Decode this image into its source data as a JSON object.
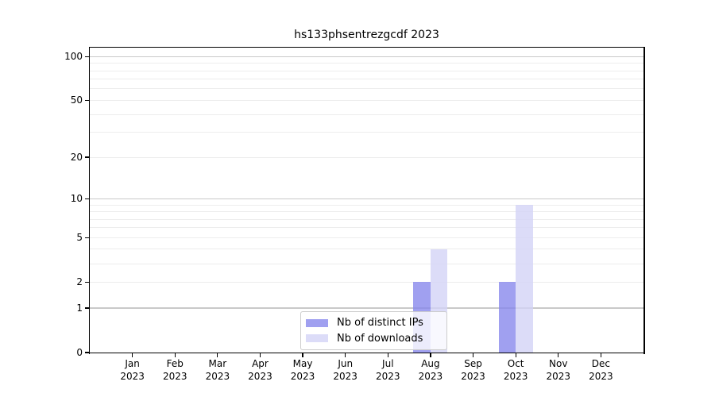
{
  "chart_data": {
    "type": "bar",
    "title": "hs133phsentrezgcdf 2023",
    "categories": [
      "Jan",
      "Feb",
      "Mar",
      "Apr",
      "May",
      "Jun",
      "Jul",
      "Aug",
      "Sep",
      "Oct",
      "Nov",
      "Dec"
    ],
    "category_year": "2023",
    "series": [
      {
        "name": "Nb of distinct IPs",
        "color": "#8888ec",
        "values": [
          0,
          0,
          0,
          0,
          0,
          0,
          0,
          2,
          0,
          2,
          0,
          0
        ]
      },
      {
        "name": "Nb of downloads",
        "color": "#d3d3f6",
        "values": [
          0,
          0,
          0,
          0,
          0,
          0,
          0,
          4,
          0,
          9,
          0,
          0
        ]
      }
    ],
    "bar_alpha": 0.8,
    "y_scale": "log1p",
    "y_ticks": [
      0,
      1,
      2,
      5,
      10,
      20,
      50,
      100
    ],
    "y_max": 115,
    "ylim": [
      0,
      115
    ],
    "grid": {
      "major_values": [
        1,
        10,
        100
      ],
      "minor_values": [
        2,
        3,
        4,
        5,
        6,
        7,
        8,
        9,
        20,
        30,
        40,
        50,
        60,
        70,
        80,
        90
      ],
      "major_color": "#c9c9c9",
      "minor_color": "#ededed"
    },
    "legend_position": "lower center"
  }
}
